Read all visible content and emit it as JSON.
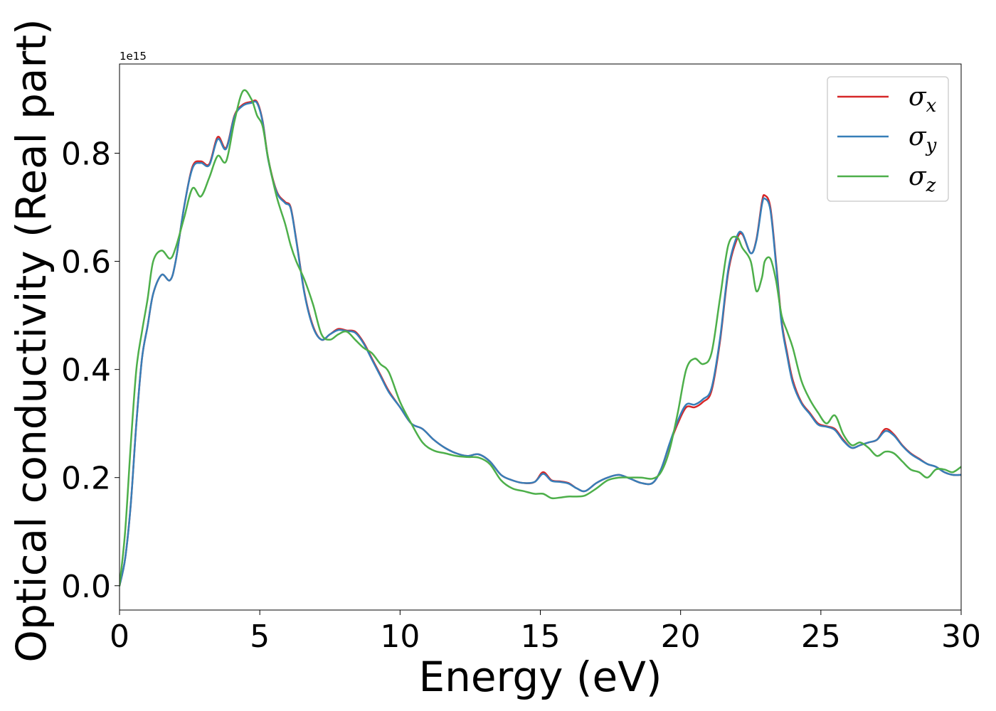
{
  "chart_data": {
    "type": "line",
    "xlabel": "Energy (eV)",
    "ylabel": "Optical conductivity (Real part)",
    "y_offset_label": "1e15",
    "xlim": [
      0,
      30
    ],
    "ylim": [
      -0.045,
      0.965
    ],
    "xticks": [
      0,
      5,
      10,
      15,
      20,
      25,
      30
    ],
    "yticks": [
      0.0,
      0.2,
      0.4,
      0.6,
      0.8
    ],
    "ytick_labels": [
      "0.0",
      "0.2",
      "0.4",
      "0.6",
      "0.8"
    ],
    "legend_position": "top-right",
    "grid": false,
    "series": [
      {
        "name": "σ_x",
        "color": "#d62728",
        "x": [
          0,
          0.2,
          0.4,
          0.6,
          0.8,
          1.0,
          1.2,
          1.5,
          1.8,
          2.0,
          2.3,
          2.6,
          2.9,
          3.2,
          3.5,
          3.8,
          4.1,
          4.4,
          4.7,
          4.9,
          5.1,
          5.3,
          5.6,
          5.9,
          6.1,
          6.3,
          6.6,
          6.9,
          7.2,
          7.5,
          7.8,
          8.1,
          8.4,
          8.7,
          9.0,
          9.3,
          9.6,
          10.0,
          10.4,
          10.8,
          11.2,
          11.6,
          12.0,
          12.4,
          12.8,
          13.2,
          13.6,
          14.0,
          14.4,
          14.8,
          15.1,
          15.4,
          15.7,
          16.0,
          16.3,
          16.6,
          17.0,
          17.4,
          17.8,
          18.2,
          18.6,
          19.0,
          19.3,
          19.6,
          19.9,
          20.2,
          20.5,
          20.8,
          21.1,
          21.4,
          21.7,
          22.0,
          22.2,
          22.5,
          22.7,
          22.9,
          23.0,
          23.2,
          23.4,
          23.6,
          23.8,
          24.0,
          24.3,
          24.6,
          24.9,
          25.2,
          25.5,
          25.8,
          26.1,
          26.4,
          26.7,
          27.0,
          27.3,
          27.6,
          27.9,
          28.2,
          28.5,
          28.8,
          29.1,
          29.4,
          29.7,
          30.0
        ],
        "y": [
          0.0,
          0.05,
          0.15,
          0.3,
          0.42,
          0.48,
          0.54,
          0.575,
          0.565,
          0.6,
          0.7,
          0.775,
          0.785,
          0.78,
          0.83,
          0.81,
          0.87,
          0.89,
          0.895,
          0.895,
          0.86,
          0.79,
          0.73,
          0.71,
          0.7,
          0.64,
          0.54,
          0.48,
          0.455,
          0.465,
          0.475,
          0.472,
          0.47,
          0.45,
          0.42,
          0.39,
          0.36,
          0.33,
          0.3,
          0.29,
          0.27,
          0.255,
          0.245,
          0.24,
          0.243,
          0.23,
          0.205,
          0.195,
          0.19,
          0.192,
          0.21,
          0.195,
          0.193,
          0.19,
          0.18,
          0.175,
          0.19,
          0.2,
          0.205,
          0.198,
          0.19,
          0.19,
          0.215,
          0.26,
          0.3,
          0.33,
          0.33,
          0.34,
          0.36,
          0.45,
          0.58,
          0.64,
          0.65,
          0.615,
          0.64,
          0.71,
          0.722,
          0.7,
          0.6,
          0.49,
          0.43,
          0.38,
          0.34,
          0.32,
          0.3,
          0.295,
          0.29,
          0.27,
          0.255,
          0.26,
          0.265,
          0.27,
          0.29,
          0.28,
          0.26,
          0.245,
          0.235,
          0.225,
          0.22,
          0.21,
          0.205,
          0.205
        ]
      },
      {
        "name": "σ_y",
        "color": "#377eb8",
        "x": [
          0,
          0.2,
          0.4,
          0.6,
          0.8,
          1.0,
          1.2,
          1.5,
          1.8,
          2.0,
          2.3,
          2.6,
          2.9,
          3.2,
          3.5,
          3.8,
          4.1,
          4.4,
          4.7,
          4.9,
          5.1,
          5.3,
          5.6,
          5.9,
          6.1,
          6.3,
          6.6,
          6.9,
          7.2,
          7.5,
          7.8,
          8.1,
          8.4,
          8.7,
          9.0,
          9.3,
          9.6,
          10.0,
          10.4,
          10.8,
          11.2,
          11.6,
          12.0,
          12.4,
          12.8,
          13.2,
          13.6,
          14.0,
          14.4,
          14.8,
          15.1,
          15.4,
          15.7,
          16.0,
          16.3,
          16.6,
          17.0,
          17.4,
          17.8,
          18.2,
          18.6,
          19.0,
          19.3,
          19.6,
          19.9,
          20.2,
          20.5,
          20.8,
          21.1,
          21.4,
          21.7,
          22.0,
          22.2,
          22.5,
          22.7,
          22.9,
          23.0,
          23.2,
          23.4,
          23.6,
          23.8,
          24.0,
          24.3,
          24.6,
          24.9,
          25.2,
          25.5,
          25.8,
          26.1,
          26.4,
          26.7,
          27.0,
          27.3,
          27.6,
          27.9,
          28.2,
          28.5,
          28.8,
          29.1,
          29.4,
          29.7,
          30.0
        ],
        "y": [
          0.0,
          0.05,
          0.15,
          0.3,
          0.42,
          0.48,
          0.54,
          0.575,
          0.565,
          0.6,
          0.7,
          0.772,
          0.782,
          0.778,
          0.826,
          0.808,
          0.868,
          0.888,
          0.893,
          0.893,
          0.858,
          0.788,
          0.728,
          0.708,
          0.698,
          0.638,
          0.538,
          0.478,
          0.455,
          0.465,
          0.473,
          0.471,
          0.468,
          0.448,
          0.418,
          0.388,
          0.358,
          0.33,
          0.3,
          0.29,
          0.27,
          0.255,
          0.245,
          0.24,
          0.243,
          0.23,
          0.205,
          0.195,
          0.19,
          0.192,
          0.207,
          0.194,
          0.192,
          0.189,
          0.18,
          0.175,
          0.19,
          0.2,
          0.205,
          0.198,
          0.19,
          0.19,
          0.215,
          0.262,
          0.305,
          0.335,
          0.335,
          0.345,
          0.365,
          0.455,
          0.585,
          0.645,
          0.652,
          0.615,
          0.638,
          0.705,
          0.716,
          0.695,
          0.595,
          0.485,
          0.425,
          0.375,
          0.338,
          0.318,
          0.298,
          0.294,
          0.288,
          0.268,
          0.255,
          0.26,
          0.265,
          0.27,
          0.286,
          0.278,
          0.259,
          0.244,
          0.234,
          0.225,
          0.22,
          0.21,
          0.205,
          0.205
        ]
      },
      {
        "name": "σ_z",
        "color": "#4daf4a",
        "x": [
          0,
          0.2,
          0.4,
          0.6,
          0.8,
          1.0,
          1.2,
          1.5,
          1.8,
          2.0,
          2.3,
          2.6,
          2.9,
          3.2,
          3.5,
          3.8,
          4.1,
          4.4,
          4.7,
          4.9,
          5.1,
          5.3,
          5.6,
          5.9,
          6.1,
          6.3,
          6.6,
          6.9,
          7.2,
          7.5,
          7.8,
          8.1,
          8.4,
          8.7,
          9.0,
          9.3,
          9.6,
          10.0,
          10.4,
          10.8,
          11.2,
          11.6,
          12.0,
          12.4,
          12.8,
          13.2,
          13.6,
          14.0,
          14.4,
          14.8,
          15.1,
          15.4,
          15.7,
          16.0,
          16.3,
          16.6,
          17.0,
          17.4,
          17.8,
          18.2,
          18.6,
          19.0,
          19.3,
          19.6,
          19.9,
          20.2,
          20.5,
          20.8,
          21.1,
          21.4,
          21.7,
          22.0,
          22.2,
          22.5,
          22.7,
          22.9,
          23.0,
          23.2,
          23.4,
          23.6,
          23.8,
          24.0,
          24.3,
          24.6,
          24.9,
          25.2,
          25.5,
          25.8,
          26.1,
          26.4,
          26.7,
          27.0,
          27.3,
          27.6,
          27.9,
          28.2,
          28.5,
          28.8,
          29.1,
          29.4,
          29.7,
          30.0
        ],
        "y": [
          0.0,
          0.1,
          0.26,
          0.4,
          0.47,
          0.53,
          0.6,
          0.62,
          0.605,
          0.625,
          0.68,
          0.735,
          0.72,
          0.755,
          0.795,
          0.785,
          0.86,
          0.915,
          0.9,
          0.87,
          0.85,
          0.79,
          0.72,
          0.67,
          0.63,
          0.6,
          0.565,
          0.52,
          0.465,
          0.455,
          0.465,
          0.47,
          0.455,
          0.44,
          0.43,
          0.41,
          0.395,
          0.34,
          0.3,
          0.265,
          0.25,
          0.245,
          0.24,
          0.238,
          0.237,
          0.225,
          0.195,
          0.18,
          0.175,
          0.17,
          0.17,
          0.162,
          0.163,
          0.165,
          0.165,
          0.167,
          0.18,
          0.195,
          0.2,
          0.2,
          0.2,
          0.198,
          0.21,
          0.25,
          0.32,
          0.4,
          0.42,
          0.41,
          0.43,
          0.53,
          0.63,
          0.645,
          0.625,
          0.6,
          0.545,
          0.57,
          0.6,
          0.605,
          0.565,
          0.5,
          0.47,
          0.44,
          0.38,
          0.345,
          0.32,
          0.3,
          0.315,
          0.28,
          0.26,
          0.265,
          0.255,
          0.24,
          0.248,
          0.245,
          0.23,
          0.215,
          0.21,
          0.2,
          0.215,
          0.215,
          0.21,
          0.22
        ]
      }
    ]
  }
}
